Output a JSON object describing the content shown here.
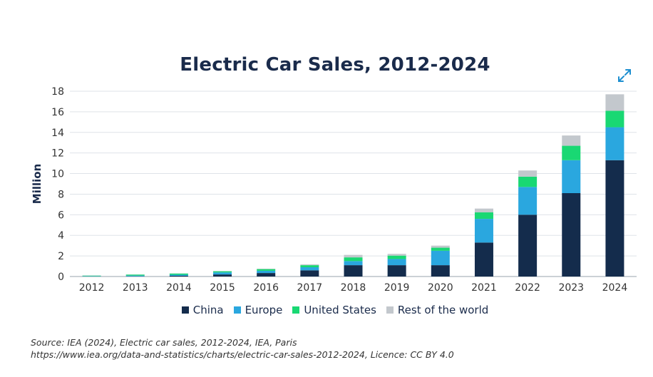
{
  "title": "Electric Car Sales, 2012-2024",
  "expand_icon": "expand-arrows-icon",
  "source_line1": "Source: IEA (2024), Electric car sales, 2012-2024, IEA, Paris",
  "source_line2": "https://www.iea.org/data-and-statistics/charts/electric-car-sales-2012-2024, Licence: CC BY 4.0",
  "chart_data": {
    "type": "bar",
    "stacked": true,
    "title": "Electric Car Sales, 2012-2024",
    "xlabel": "",
    "ylabel": "Million",
    "ylim": [
      0,
      18
    ],
    "yticks": [
      0,
      2,
      4,
      6,
      8,
      10,
      12,
      14,
      16,
      18
    ],
    "grid": true,
    "legend_position": "bottom",
    "categories": [
      "2012",
      "2013",
      "2014",
      "2015",
      "2016",
      "2017",
      "2018",
      "2019",
      "2020",
      "2021",
      "2022",
      "2023",
      "2024"
    ],
    "series": [
      {
        "name": "China",
        "color": "#142c4c",
        "values": [
          0.01,
          0.02,
          0.07,
          0.2,
          0.34,
          0.6,
          1.1,
          1.1,
          1.1,
          3.3,
          6.0,
          8.1,
          11.3
        ]
      },
      {
        "name": "Europe",
        "color": "#2aa7df",
        "values": [
          0.03,
          0.07,
          0.1,
          0.2,
          0.22,
          0.3,
          0.4,
          0.6,
          1.4,
          2.3,
          2.7,
          3.2,
          3.2
        ]
      },
      {
        "name": "United States",
        "color": "#19d873",
        "values": [
          0.05,
          0.1,
          0.12,
          0.11,
          0.16,
          0.2,
          0.36,
          0.33,
          0.3,
          0.63,
          1.0,
          1.4,
          1.6
        ]
      },
      {
        "name": "Rest of the world",
        "color": "#c3c8cd",
        "values": [
          0.02,
          0.02,
          0.02,
          0.03,
          0.04,
          0.08,
          0.24,
          0.17,
          0.2,
          0.37,
          0.6,
          1.0,
          1.6
        ]
      }
    ]
  }
}
